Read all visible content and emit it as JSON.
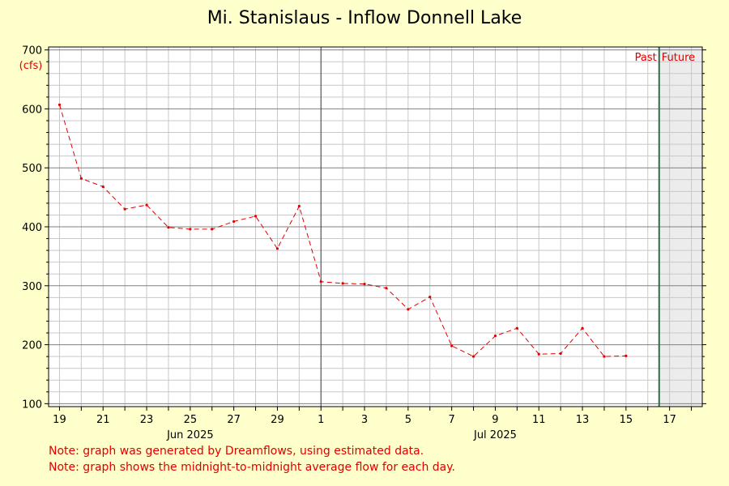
{
  "chart_data": {
    "type": "line",
    "title": "Mi. Stanislaus - Inflow Donnell Lake",
    "ylabel": "(cfs)",
    "ylim": [
      95,
      705
    ],
    "y_ticks": [
      100,
      200,
      300,
      400,
      500,
      600,
      700
    ],
    "x_range": [
      "2025-06-18T12:00",
      "2025-07-18T12:00"
    ],
    "x_tick_labels": [
      {
        "label": "19",
        "date": "2025-06-19"
      },
      {
        "label": "21",
        "date": "2025-06-21"
      },
      {
        "label": "23",
        "date": "2025-06-23"
      },
      {
        "label": "25",
        "date": "2025-06-25"
      },
      {
        "label": "27",
        "date": "2025-06-27"
      },
      {
        "label": "29",
        "date": "2025-06-29"
      },
      {
        "label": "1",
        "date": "2025-07-01"
      },
      {
        "label": "3",
        "date": "2025-07-03"
      },
      {
        "label": "5",
        "date": "2025-07-05"
      },
      {
        "label": "7",
        "date": "2025-07-07"
      },
      {
        "label": "9",
        "date": "2025-07-09"
      },
      {
        "label": "11",
        "date": "2025-07-11"
      },
      {
        "label": "13",
        "date": "2025-07-13"
      },
      {
        "label": "15",
        "date": "2025-07-15"
      },
      {
        "label": "17",
        "date": "2025-07-17"
      }
    ],
    "month_labels": [
      {
        "label": "Jun 2025",
        "date": "2025-06-25"
      },
      {
        "label": "Jul 2025",
        "date": "2025-07-09"
      }
    ],
    "month_boundary": "2025-07-01",
    "now_line": "2025-07-16T12:30",
    "past_label": "Past",
    "future_label": "Future",
    "series": [
      {
        "color": "#e00000",
        "x": [
          "2025-06-19",
          "2025-06-20",
          "2025-06-21",
          "2025-06-22",
          "2025-06-23",
          "2025-06-24",
          "2025-06-25",
          "2025-06-26",
          "2025-06-27",
          "2025-06-28",
          "2025-06-29",
          "2025-06-30",
          "2025-07-01",
          "2025-07-02",
          "2025-07-03",
          "2025-07-04",
          "2025-07-05",
          "2025-07-06",
          "2025-07-07",
          "2025-07-08",
          "2025-07-09",
          "2025-07-10",
          "2025-07-11",
          "2025-07-12",
          "2025-07-13",
          "2025-07-14",
          "2025-07-15"
        ],
        "y": [
          607,
          482,
          468,
          430,
          437,
          399,
          396,
          396,
          409,
          418,
          363,
          435,
          307,
          304,
          303,
          296,
          260,
          281,
          198,
          180,
          215,
          228,
          184,
          185,
          228,
          180,
          181
        ]
      }
    ],
    "grid": true,
    "colors": {
      "background": "#ffffcc",
      "plot_background": "#ffffff",
      "grid_minor": "#c8c8c8",
      "grid_major": "#808080",
      "now_line": "#2e6b4a",
      "future_shade": "#ececec",
      "text_accent": "#e00000"
    }
  },
  "notes": [
    "Note: graph was generated by Dreamflows, using estimated data.",
    "Note: graph shows the midnight-to-midnight average flow for each day."
  ]
}
